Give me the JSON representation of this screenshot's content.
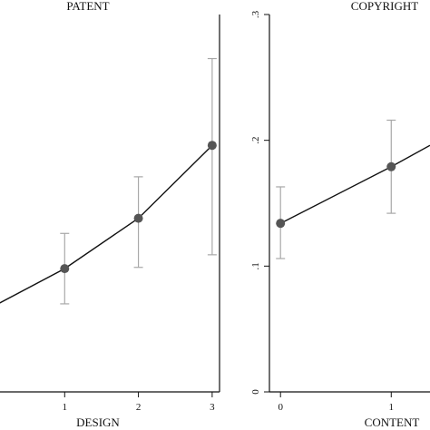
{
  "colors": {
    "frame": "#111111",
    "line": "#111111",
    "marker": "#555555",
    "errorbar": "#a8a8a8"
  },
  "chart_data": [
    {
      "type": "line",
      "title": "PATENT",
      "xlabel": "DESIGN",
      "ylabel": "",
      "x_ticks": [
        1,
        2,
        3
      ],
      "y_ticks": [],
      "xlim": [
        0,
        3.1
      ],
      "ylim": [
        0,
        0.3
      ],
      "series": [
        {
          "x": [
            0,
            1,
            2,
            3
          ],
          "y": [
            0.067,
            0.098,
            0.138,
            0.196
          ],
          "ci_low": [
            null,
            0.07,
            0.099,
            0.109
          ],
          "ci_high": [
            null,
            0.126,
            0.171,
            0.265
          ]
        }
      ]
    },
    {
      "type": "line",
      "title": "COPYRIGHT",
      "xlabel": "CONTENT",
      "ylabel": "",
      "x_ticks": [
        0,
        1
      ],
      "y_ticks": [
        0,
        0.1,
        0.2,
        0.3
      ],
      "y_tick_labels": [
        "0",
        ".1",
        ".2",
        ".3"
      ],
      "xlim": [
        -0.1,
        1.35
      ],
      "ylim": [
        0,
        0.3
      ],
      "series": [
        {
          "x": [
            0,
            1,
            1.35
          ],
          "y": [
            0.134,
            0.179,
            0.196
          ],
          "ci_low": [
            0.106,
            0.142,
            null
          ],
          "ci_high": [
            0.163,
            0.216,
            null
          ]
        }
      ]
    }
  ]
}
